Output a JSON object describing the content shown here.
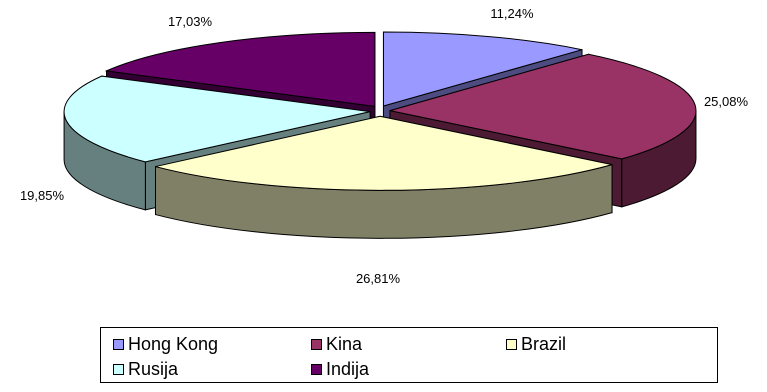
{
  "chart_data": {
    "type": "pie",
    "title": "",
    "slices": [
      {
        "name": "Hong Kong",
        "value": 11.24,
        "label": "11,24%",
        "color": "#9999ff",
        "side_color": "#4c4c80"
      },
      {
        "name": "Kina",
        "value": 25.08,
        "label": "25,08%",
        "color": "#993366",
        "side_color": "#4d1a33"
      },
      {
        "name": "Brazil",
        "value": 26.81,
        "label": "26,81%",
        "color": "#ffffcc",
        "side_color": "#808066"
      },
      {
        "name": "Rusija",
        "value": 19.85,
        "label": "19,85%",
        "color": "#ccffff",
        "side_color": "#668080"
      },
      {
        "name": "Indija",
        "value": 17.03,
        "label": "17,03%",
        "color": "#660066",
        "side_color": "#330033"
      }
    ],
    "legend_position": "bottom",
    "exploded": true,
    "three_d": true
  }
}
